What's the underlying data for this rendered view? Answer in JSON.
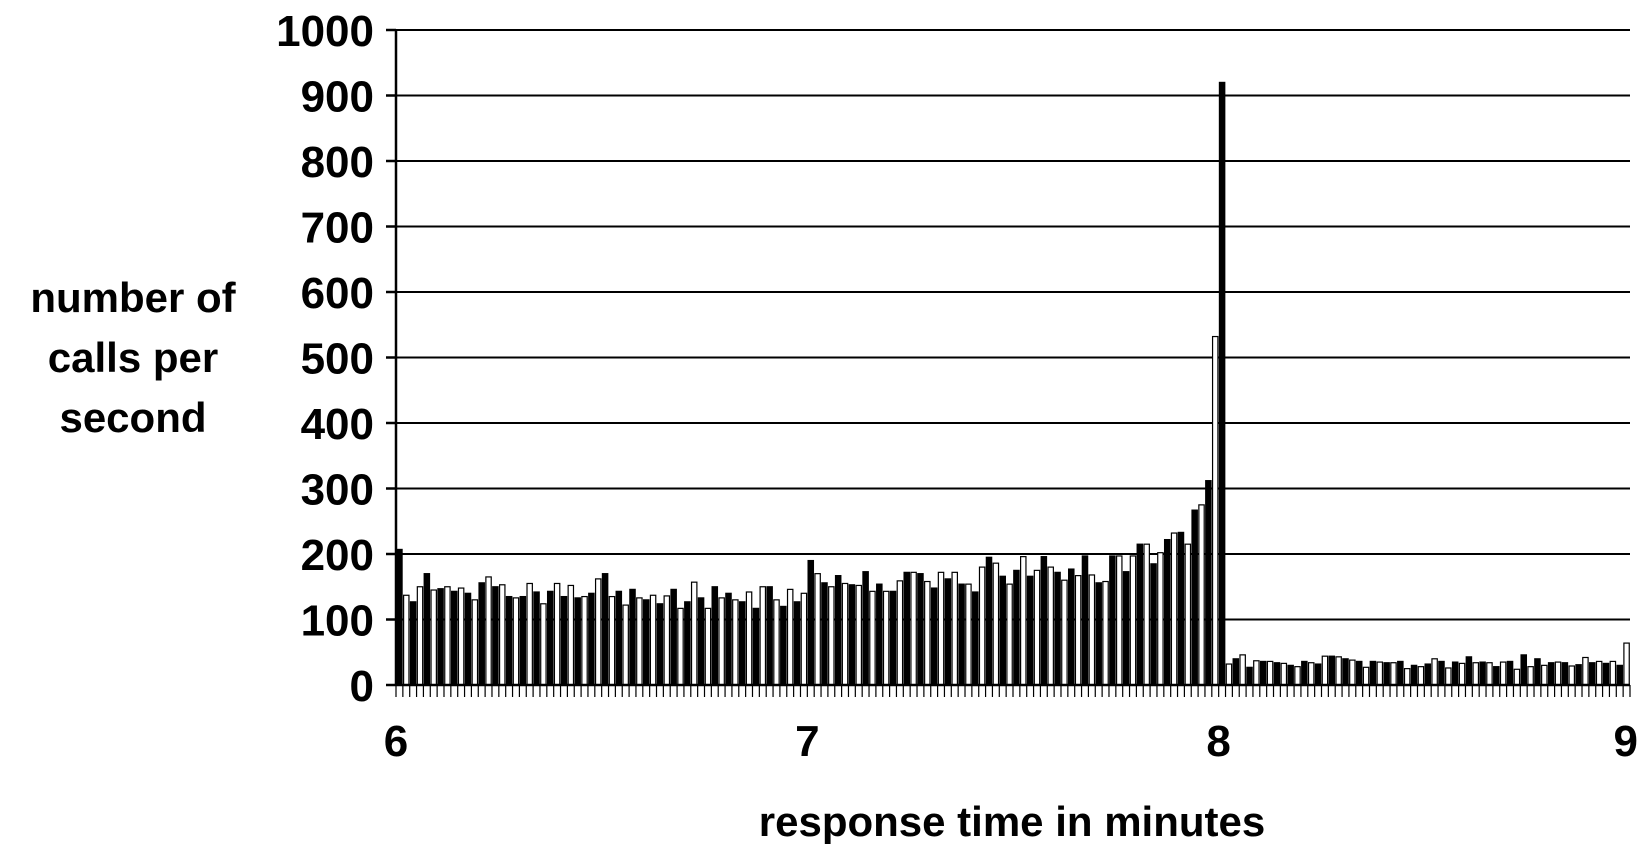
{
  "chart_data": {
    "type": "bar",
    "title": "",
    "xlabel": "response time in minutes",
    "ylabel_lines": [
      "number of",
      "calls per",
      "second"
    ],
    "xlim": [
      6,
      9
    ],
    "ylim": [
      0,
      1000
    ],
    "x_ticks": [
      "6",
      "7",
      "8",
      "9"
    ],
    "y_ticks": [
      "0",
      "100",
      "200",
      "300",
      "400",
      "500",
      "600",
      "700",
      "800",
      "900",
      "1000"
    ],
    "grid": true,
    "legend": "none",
    "bar_colors": [
      "#000000",
      "#ffffff"
    ],
    "bar_outline": "#000000",
    "bin_minutes": 0.01667,
    "values": [
      207,
      137,
      127,
      150,
      170,
      145,
      147,
      150,
      143,
      148,
      140,
      130,
      156,
      165,
      150,
      153,
      135,
      133,
      135,
      155,
      142,
      124,
      143,
      155,
      135,
      152,
      133,
      135,
      140,
      162,
      170,
      135,
      143,
      122,
      146,
      133,
      130,
      137,
      124,
      136,
      146,
      117,
      127,
      157,
      133,
      117,
      150,
      133,
      140,
      130,
      127,
      142,
      117,
      150,
      150,
      130,
      120,
      146,
      127,
      140,
      190,
      170,
      156,
      150,
      167,
      155,
      153,
      152,
      173,
      143,
      154,
      143,
      143,
      159,
      172,
      172,
      170,
      158,
      148,
      172,
      162,
      172,
      154,
      154,
      142,
      180,
      195,
      186,
      166,
      154,
      175,
      196,
      166,
      175,
      196,
      180,
      172,
      160,
      177,
      167,
      197,
      168,
      156,
      158,
      197,
      197,
      173,
      197,
      215,
      215,
      185,
      202,
      222,
      232,
      233,
      215,
      267,
      275,
      312,
      532,
      920,
      32,
      40,
      46,
      27,
      37,
      36,
      36,
      34,
      33,
      30,
      28,
      36,
      34,
      32,
      44,
      44,
      43,
      40,
      38,
      36,
      27,
      36,
      35,
      34,
      34,
      36,
      25,
      30,
      28,
      32,
      40,
      36,
      26,
      35,
      33,
      43,
      34,
      35,
      34,
      28,
      35,
      36,
      24,
      46,
      28,
      40,
      30,
      34,
      35,
      34,
      29,
      31,
      42,
      34,
      36,
      33,
      36,
      30,
      64
    ]
  }
}
